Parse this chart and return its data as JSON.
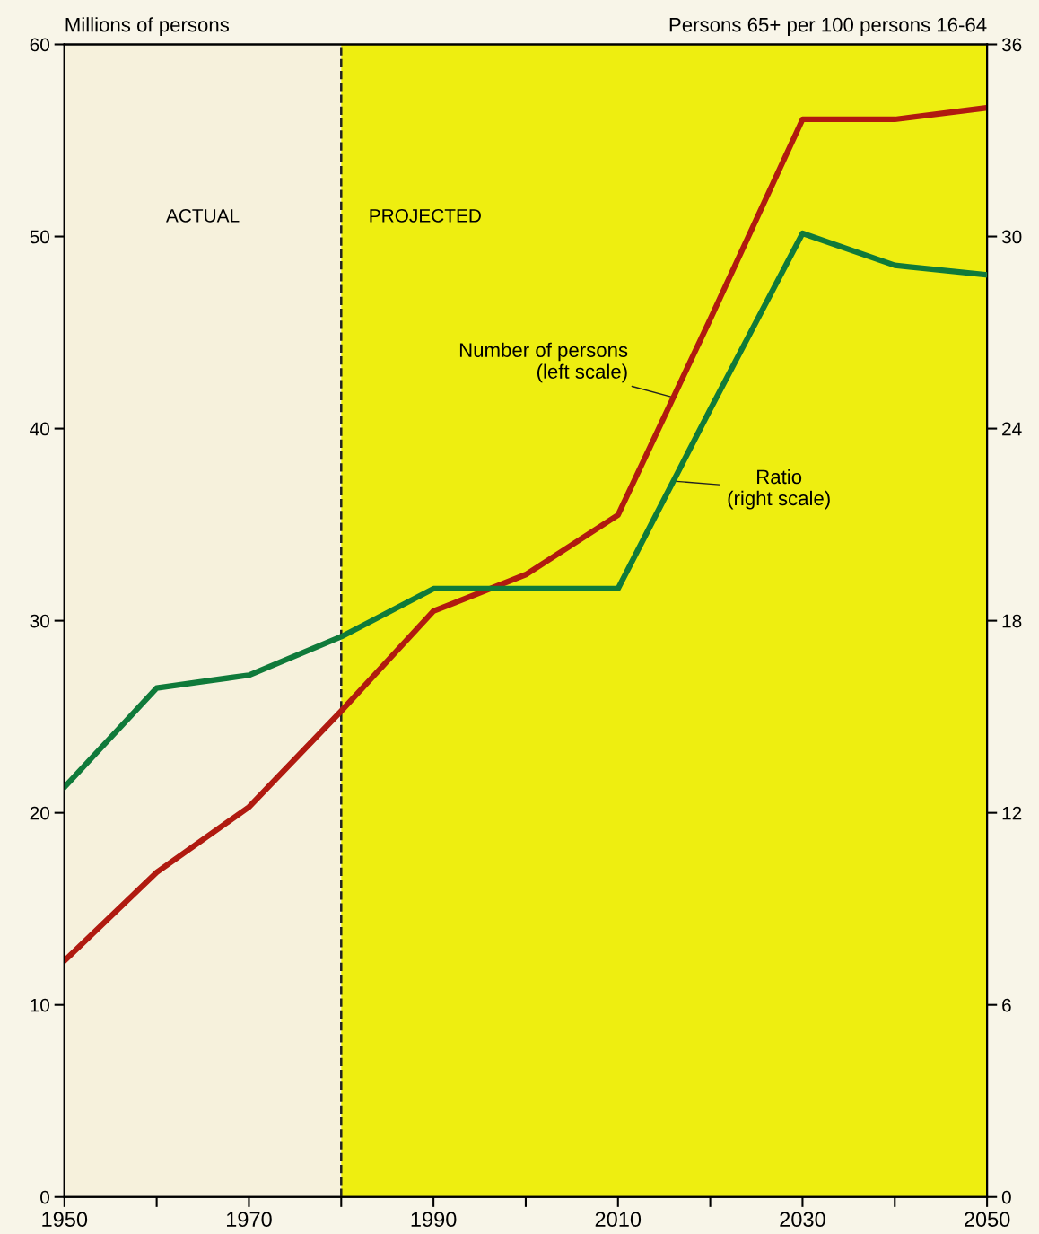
{
  "chart_data": {
    "type": "line",
    "x": [
      1950,
      1960,
      1970,
      1980,
      1990,
      2000,
      2010,
      2020,
      2030,
      2040,
      2050
    ],
    "series": [
      {
        "name": "Number of persons\n(left scale)",
        "color": "#b01a10",
        "values": [
          12.3,
          16.9,
          20.3,
          25.3,
          30.5,
          32.4,
          35.5,
          45.7,
          56.1,
          56.1,
          56.7
        ]
      },
      {
        "name": "Ratio\n(right scale)",
        "color": "#0f7a3a",
        "axis": "y2",
        "values": [
          12.8,
          15.9,
          16.3,
          17.5,
          19.0,
          19.0,
          19.0,
          24.6,
          30.1,
          29.1,
          28.8
        ]
      }
    ],
    "ylabel": "Millions of persons",
    "y2label": "Persons 65+ per 100 persons 16-64",
    "xlim": [
      1950,
      2050
    ],
    "xticks": [
      1950,
      {
        "value": 1960,
        "label": null
      },
      1970,
      {
        "value": 1980,
        "label": null
      },
      1990,
      {
        "value": 2000,
        "label": null
      },
      2010,
      {
        "value": 2020,
        "label": null
      },
      2030,
      {
        "value": 2040,
        "label": null
      },
      2050
    ],
    "ylim": [
      0,
      60
    ],
    "yticks": [
      0,
      10,
      20,
      30,
      40,
      50,
      60
    ],
    "y2lim": [
      0,
      36
    ],
    "y2ticks": [
      0,
      6,
      12,
      18,
      24,
      30,
      36
    ],
    "bands": [
      {
        "axis": "x",
        "from": 1950,
        "to": 1980,
        "label": "ACTUAL",
        "color": "#f6f1dc"
      },
      {
        "axis": "x",
        "from": 1980,
        "to": 2050,
        "label": "PROJECTED",
        "color": "#eeee10"
      }
    ],
    "ref_lines": [
      {
        "axis": "x",
        "value": 1980,
        "line_style": "dashed",
        "color": "#222222"
      }
    ],
    "grid": false,
    "legend": false,
    "marker": "none",
    "line_style": "solid"
  }
}
